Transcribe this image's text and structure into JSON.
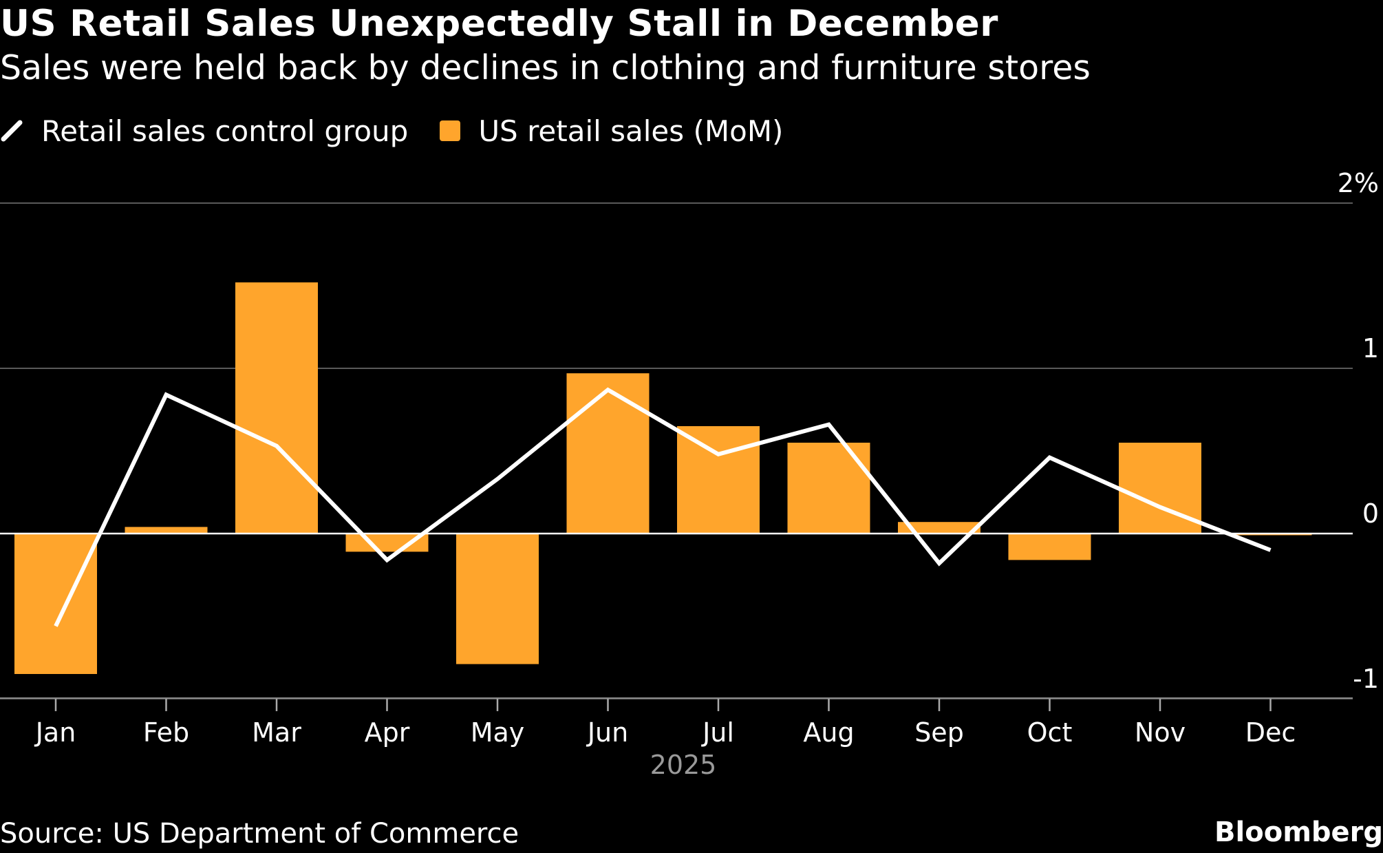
{
  "title": "US Retail Sales Unexpectedly Stall in December",
  "subtitle": "Sales were held back by declines in clothing and furniture stores",
  "legend": [
    {
      "label": "Retail sales control group",
      "color": "#FFFFFF",
      "kind": "line"
    },
    {
      "label": "US retail sales (MoM)",
      "color": "#FFA52C",
      "kind": "bar"
    }
  ],
  "source": "Source: US Department of Commerce",
  "brand": "Bloomberg",
  "chart_data": {
    "type": "bar",
    "categories": [
      "Jan",
      "Feb",
      "Mar",
      "Apr",
      "May",
      "Jun",
      "Jul",
      "Aug",
      "Sep",
      "Oct",
      "Nov",
      "Dec"
    ],
    "year_label": "2025",
    "series": [
      {
        "name": "US retail sales (MoM)",
        "type": "bar",
        "color": "#FFA52C",
        "values": [
          -0.85,
          0.04,
          1.52,
          -0.11,
          -0.79,
          0.97,
          0.65,
          0.55,
          0.07,
          -0.16,
          0.55,
          -0.01
        ]
      },
      {
        "name": "Retail sales control group",
        "type": "line",
        "color": "#FFFFFF",
        "values": [
          -0.56,
          0.84,
          0.53,
          -0.16,
          0.33,
          0.87,
          0.48,
          0.66,
          -0.18,
          0.46,
          0.16,
          -0.1
        ]
      }
    ],
    "y_ticks": [
      {
        "value": 2,
        "label": "2%"
      },
      {
        "value": 1,
        "label": "1"
      },
      {
        "value": 0,
        "label": "0"
      },
      {
        "value": -1,
        "label": "-1"
      }
    ],
    "ylim": [
      -1,
      2
    ],
    "grid": true
  }
}
